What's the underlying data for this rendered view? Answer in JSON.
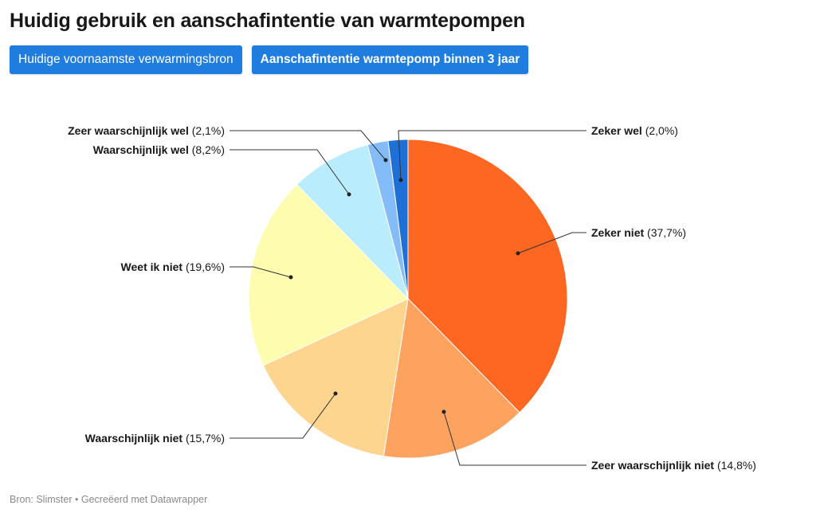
{
  "title": "Huidig gebruik en aanschafintentie van warmtepompen",
  "tabs": [
    {
      "label": "Huidige voornaamste verwarmingsbron",
      "active": false
    },
    {
      "label": "Aanschafintentie warmtepomp binnen 3 jaar",
      "active": true
    }
  ],
  "footer": {
    "source": "Bron: Slimster",
    "separator": "•",
    "credit": "Gecreëerd met Datawrapper"
  },
  "colors": {
    "tab_bg": "#1f7de0",
    "tab_text": "#ffffff"
  },
  "chart_data": {
    "type": "pie",
    "title": "",
    "start": "12 o'clock, clockwise",
    "slices": [
      {
        "label": "Zeker niet",
        "value": 37.7,
        "display": "(37,7%)",
        "color": "#fe6722"
      },
      {
        "label": "Zeer waarschijnlijk niet",
        "value": 14.8,
        "display": "(14,8%)",
        "color": "#fea25f"
      },
      {
        "label": "Waarschijnlijk niet",
        "value": 15.7,
        "display": "(15,7%)",
        "color": "#fed58f"
      },
      {
        "label": "Weet ik niet",
        "value": 19.6,
        "display": "(19,6%)",
        "color": "#fefdaf"
      },
      {
        "label": "Waarschijnlijk wel",
        "value": 8.2,
        "display": "(8,2%)",
        "color": "#b9edfe"
      },
      {
        "label": "Zeer waarschijnlijk wel",
        "value": 2.1,
        "display": "(2,1%)",
        "color": "#84bcfa"
      },
      {
        "label": "Zeker wel",
        "value": 2.0,
        "display": "(2,0%)",
        "color": "#1e6fd6"
      }
    ]
  }
}
